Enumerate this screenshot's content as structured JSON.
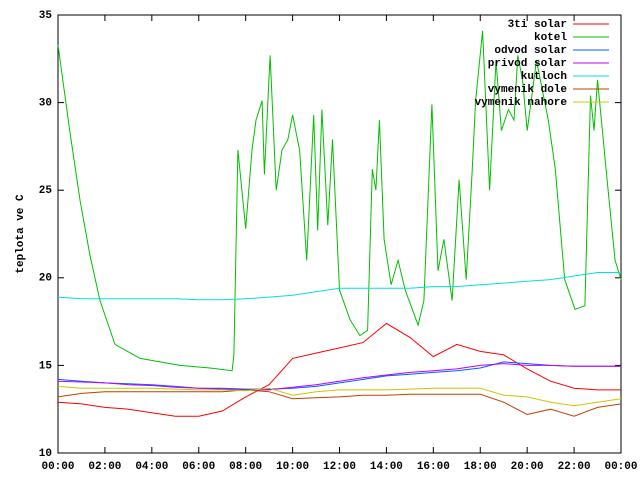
{
  "chart_data": {
    "type": "line",
    "ylabel": "teplota ve C",
    "xlim": [
      0,
      24
    ],
    "ylim": [
      10,
      35
    ],
    "xticks": [
      {
        "value": 0,
        "label": "00:00"
      },
      {
        "value": 2,
        "label": "02:00"
      },
      {
        "value": 4,
        "label": "04:00"
      },
      {
        "value": 6,
        "label": "06:00"
      },
      {
        "value": 8,
        "label": "08:00"
      },
      {
        "value": 10,
        "label": "10:00"
      },
      {
        "value": 12,
        "label": "12:00"
      },
      {
        "value": 14,
        "label": "14:00"
      },
      {
        "value": 16,
        "label": "16:00"
      },
      {
        "value": 18,
        "label": "18:00"
      },
      {
        "value": 20,
        "label": "20:00"
      },
      {
        "value": 22,
        "label": "22:00"
      },
      {
        "value": 24,
        "label": "00:00"
      }
    ],
    "yticks": [
      10,
      15,
      20,
      25,
      30,
      35
    ],
    "legend": "top-right",
    "x": [
      0,
      1,
      2,
      3,
      4,
      5,
      6,
      7,
      8,
      9,
      10,
      11,
      12,
      13,
      14,
      15,
      16,
      17,
      18,
      19,
      20,
      21,
      22,
      23,
      24
    ],
    "series": [
      {
        "name": "3ti solar",
        "color": "#ff0000",
        "values": [
          12.9,
          12.8,
          12.6,
          12.5,
          12.3,
          12.1,
          12.1,
          12.4,
          13.2,
          13.9,
          15.4,
          15.7,
          16.0,
          16.3,
          17.4,
          16.6,
          15.5,
          16.2,
          15.8,
          15.6,
          14.8,
          14.1,
          13.7,
          13.6,
          13.6
        ]
      },
      {
        "name": "kotel",
        "color": "#00c000",
        "x": [
          0,
          0.5,
          0.94,
          1.36,
          1.79,
          2.43,
          3.5,
          5.2,
          6.48,
          7.42,
          7.5,
          7.67,
          8.0,
          8.27,
          8.44,
          8.7,
          8.8,
          9.04,
          9.3,
          9.55,
          9.8,
          10.0,
          10.3,
          10.6,
          10.9,
          11.07,
          11.25,
          11.5,
          11.7,
          12.0,
          12.45,
          12.87,
          13.2,
          13.4,
          13.55,
          13.7,
          13.9,
          14.2,
          14.5,
          14.8,
          15.35,
          15.6,
          15.94,
          16.2,
          16.45,
          16.8,
          17.1,
          17.4,
          17.65,
          17.8,
          18.1,
          18.4,
          18.67,
          18.9,
          19.2,
          19.44,
          19.6,
          19.8,
          20.0,
          20.4,
          20.9,
          21.2,
          21.6,
          22.04,
          22.46,
          22.7,
          22.85,
          23.0,
          23.45,
          23.75,
          24
        ],
        "values": [
          33.3,
          28.4,
          24.4,
          21.3,
          18.7,
          16.2,
          15.4,
          15.0,
          14.85,
          14.7,
          15.6,
          27.3,
          22.8,
          27.3,
          29.0,
          30.1,
          25.9,
          32.7,
          25.0,
          27.3,
          27.9,
          29.3,
          27.3,
          21.0,
          29.3,
          22.7,
          29.6,
          23.0,
          27.9,
          19.3,
          17.6,
          16.7,
          17.0,
          26.2,
          25.0,
          29.0,
          22.2,
          19.6,
          21.0,
          19.3,
          17.3,
          18.7,
          29.9,
          20.4,
          22.2,
          18.7,
          25.6,
          19.9,
          25.9,
          30.1,
          34.1,
          25.0,
          32.4,
          28.4,
          29.6,
          29.0,
          32.7,
          31.3,
          28.4,
          32.4,
          29.0,
          26.2,
          19.9,
          18.2,
          18.4,
          30.4,
          28.4,
          31.3,
          25.0,
          21.0,
          19.9
        ]
      },
      {
        "name": "odvod solar",
        "color": "#0060ff",
        "values": [
          14.2,
          14.1,
          14.0,
          13.95,
          13.9,
          13.8,
          13.7,
          13.7,
          13.65,
          13.65,
          13.7,
          13.8,
          14.0,
          14.2,
          14.4,
          14.5,
          14.6,
          14.7,
          14.85,
          15.2,
          15.1,
          15.0,
          14.95,
          14.95,
          14.95
        ]
      },
      {
        "name": "privod solar",
        "color": "#c000ff",
        "values": [
          14.1,
          14.05,
          14.0,
          13.9,
          13.85,
          13.75,
          13.7,
          13.65,
          13.6,
          13.6,
          13.75,
          13.9,
          14.1,
          14.3,
          14.45,
          14.6,
          14.7,
          14.8,
          15.0,
          15.1,
          15.0,
          15.0,
          14.95,
          14.95,
          14.95
        ]
      },
      {
        "name": "kutloch",
        "color": "#00e0e0",
        "values": [
          18.9,
          18.8,
          18.8,
          18.8,
          18.8,
          18.8,
          18.75,
          18.75,
          18.8,
          18.9,
          19.0,
          19.2,
          19.4,
          19.4,
          19.4,
          19.4,
          19.5,
          19.5,
          19.6,
          19.7,
          19.8,
          19.9,
          20.1,
          20.3,
          20.3
        ]
      },
      {
        "name": "vymenik dole",
        "color": "#c04000",
        "values": [
          13.2,
          13.4,
          13.5,
          13.5,
          13.5,
          13.5,
          13.5,
          13.5,
          13.6,
          13.5,
          13.1,
          13.15,
          13.2,
          13.3,
          13.3,
          13.35,
          13.35,
          13.35,
          13.35,
          12.9,
          12.2,
          12.5,
          12.1,
          12.6,
          12.8
        ]
      },
      {
        "name": "vymenik nahore",
        "color": "#c8c800",
        "values": [
          13.8,
          13.7,
          13.7,
          13.7,
          13.7,
          13.65,
          13.6,
          13.6,
          13.55,
          13.7,
          13.3,
          13.5,
          13.6,
          13.6,
          13.6,
          13.65,
          13.7,
          13.7,
          13.7,
          13.3,
          13.2,
          12.9,
          12.7,
          12.9,
          13.1
        ]
      }
    ]
  }
}
